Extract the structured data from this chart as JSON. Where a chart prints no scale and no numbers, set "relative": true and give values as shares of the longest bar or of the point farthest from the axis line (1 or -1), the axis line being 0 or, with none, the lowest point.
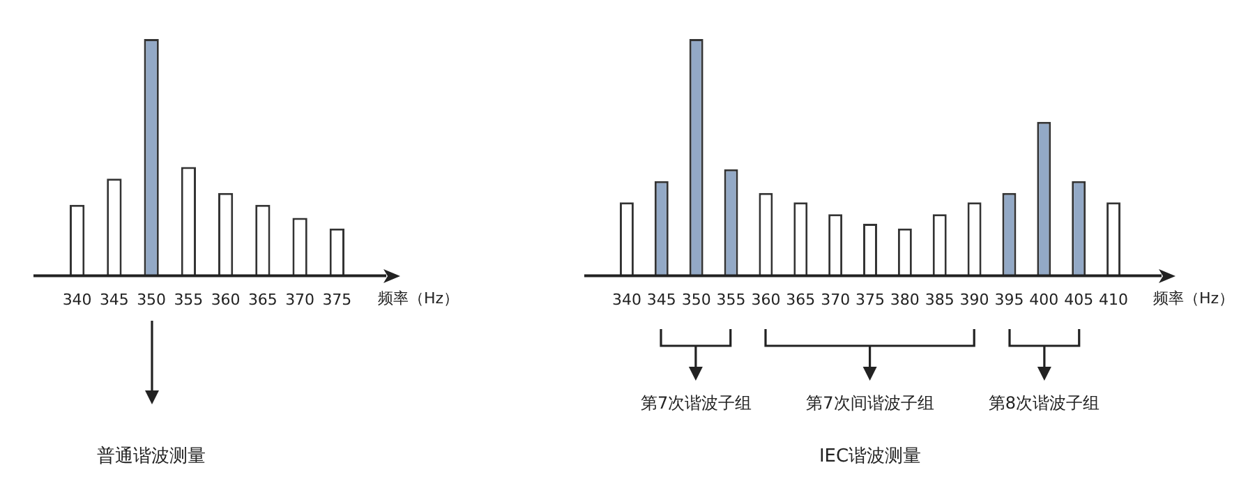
{
  "chart_data": [
    {
      "type": "bar",
      "relative": true,
      "xlabel": "频率（Hz）",
      "categories": [
        "340",
        "345",
        "350",
        "355",
        "360",
        "365",
        "370",
        "375"
      ],
      "values": [
        0.3,
        0.41,
        1,
        0.46,
        0.35,
        0.3,
        0.245,
        0.2
      ],
      "colors": [
        "#ffffff",
        "#ffffff",
        "#93a9c6",
        "#ffffff",
        "#ffffff",
        "#ffffff",
        "#ffffff",
        "#ffffff"
      ],
      "grid": false,
      "legend": false,
      "annotations": [
        "普通谐波测量"
      ]
    },
    {
      "type": "bar",
      "relative": true,
      "xlabel": "频率（Hz）",
      "categories": [
        "340",
        "345",
        "350",
        "355",
        "360",
        "365",
        "370",
        "375",
        "380",
        "385",
        "390",
        "395",
        "400",
        "405",
        "410"
      ],
      "values": [
        0.31,
        0.4,
        1,
        0.45,
        0.35,
        0.31,
        0.26,
        0.22,
        0.2,
        0.26,
        0.31,
        0.35,
        0.65,
        0.4,
        0.31
      ],
      "colors": [
        "#ffffff",
        "#93a9c6",
        "#93a9c6",
        "#93a9c6",
        "#ffffff",
        "#ffffff",
        "#ffffff",
        "#ffffff",
        "#ffffff",
        "#ffffff",
        "#ffffff",
        "#93a9c6",
        "#93a9c6",
        "#93a9c6",
        "#ffffff"
      ],
      "grid": false,
      "legend": false,
      "annotations": [
        "第7次谐波子组",
        "第7次间谐波子组",
        "第8次谐波子组",
        "IEC谐波测量"
      ]
    }
  ]
}
